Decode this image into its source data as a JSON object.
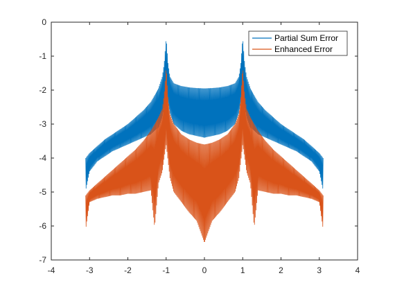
{
  "chart_data": {
    "type": "line",
    "title": "",
    "xlabel": "",
    "ylabel": "",
    "xlim": [
      -4,
      4
    ],
    "ylim": [
      -7,
      0
    ],
    "xticks": [
      -4,
      -3,
      -2,
      -1,
      0,
      1,
      2,
      3,
      4
    ],
    "yticks": [
      0,
      -1,
      -2,
      -3,
      -4,
      -5,
      -6,
      -7
    ],
    "xtick_labels": [
      "-4",
      "-3",
      "-2",
      "-1",
      "0",
      "1",
      "2",
      "3",
      "4"
    ],
    "ytick_labels": [
      "0",
      "-1",
      "-2",
      "-3",
      "-4",
      "-5",
      "-6",
      "-7"
    ],
    "grid": false,
    "legend_position": "top-right",
    "series": [
      {
        "name": "Partial Sum Error",
        "color": "#0072BD",
        "x": [
          -3.1,
          -3.0,
          -2.8,
          -2.6,
          -2.4,
          -2.2,
          -2.0,
          -1.8,
          -1.6,
          -1.4,
          -1.3,
          -1.2,
          -1.1,
          -1.05,
          -1.0,
          -0.95,
          -0.9,
          -0.8,
          -0.6,
          -0.4,
          -0.2,
          0.0,
          0.2,
          0.4,
          0.6,
          0.8,
          0.9,
          0.95,
          1.0,
          1.05,
          1.1,
          1.2,
          1.3,
          1.4,
          1.6,
          1.8,
          2.0,
          2.2,
          2.4,
          2.6,
          2.8,
          3.0,
          3.1
        ],
        "upper": [
          -4.0,
          -3.85,
          -3.65,
          -3.45,
          -3.3,
          -3.15,
          -3.0,
          -2.8,
          -2.6,
          -2.35,
          -2.15,
          -1.95,
          -1.6,
          -1.2,
          -0.45,
          -1.2,
          -1.6,
          -1.8,
          -1.88,
          -1.92,
          -1.94,
          -1.95,
          -1.94,
          -1.92,
          -1.88,
          -1.8,
          -1.6,
          -1.2,
          -0.45,
          -1.2,
          -1.6,
          -1.95,
          -2.15,
          -2.35,
          -2.6,
          -2.8,
          -3.0,
          -3.15,
          -3.3,
          -3.45,
          -3.65,
          -3.85,
          -4.0
        ],
        "lower": [
          -4.95,
          -4.4,
          -4.1,
          -3.95,
          -3.8,
          -3.7,
          -3.6,
          -3.5,
          -3.4,
          -3.3,
          -3.2,
          -3.1,
          -2.8,
          -2.5,
          -2.2,
          -2.4,
          -2.7,
          -3.0,
          -3.2,
          -3.3,
          -3.35,
          -3.4,
          -3.35,
          -3.3,
          -3.2,
          -3.0,
          -2.7,
          -2.4,
          -2.2,
          -2.5,
          -2.8,
          -3.1,
          -3.2,
          -3.3,
          -3.4,
          -3.5,
          -3.6,
          -3.7,
          -3.8,
          -3.95,
          -4.1,
          -4.4,
          -4.95
        ]
      },
      {
        "name": "Enhanced Error",
        "color": "#D95319",
        "x": [
          -3.1,
          -3.0,
          -2.8,
          -2.6,
          -2.4,
          -2.2,
          -2.0,
          -1.8,
          -1.6,
          -1.4,
          -1.3,
          -1.2,
          -1.1,
          -1.05,
          -1.0,
          -0.95,
          -0.9,
          -0.8,
          -0.6,
          -0.4,
          -0.2,
          0.0,
          0.2,
          0.4,
          0.6,
          0.8,
          0.9,
          0.95,
          1.0,
          1.05,
          1.1,
          1.2,
          1.3,
          1.4,
          1.6,
          1.8,
          2.0,
          2.2,
          2.4,
          2.6,
          2.8,
          3.0,
          3.1
        ],
        "upper": [
          -5.1,
          -4.95,
          -4.75,
          -4.55,
          -4.35,
          -4.15,
          -3.95,
          -3.75,
          -3.5,
          -3.2,
          -3.0,
          -2.8,
          -2.55,
          -2.1,
          -1.3,
          -2.2,
          -2.7,
          -3.0,
          -3.3,
          -3.45,
          -3.55,
          -3.6,
          -3.55,
          -3.45,
          -3.3,
          -3.0,
          -2.7,
          -2.2,
          -1.3,
          -2.1,
          -2.55,
          -2.8,
          -3.0,
          -3.2,
          -3.5,
          -3.75,
          -3.95,
          -4.15,
          -4.35,
          -4.55,
          -4.75,
          -4.95,
          -5.1
        ],
        "lower": [
          -6.1,
          -5.3,
          -5.2,
          -5.15,
          -5.1,
          -5.1,
          -5.05,
          -5.05,
          -5.0,
          -4.95,
          -6.05,
          -4.75,
          -4.4,
          -4.0,
          -3.6,
          -4.1,
          -4.6,
          -5.0,
          -5.3,
          -5.6,
          -5.85,
          -6.5,
          -5.85,
          -5.6,
          -5.3,
          -5.0,
          -4.6,
          -4.1,
          -3.6,
          -4.0,
          -4.4,
          -4.75,
          -6.05,
          -4.95,
          -5.0,
          -5.05,
          -5.05,
          -5.1,
          -5.1,
          -5.15,
          -5.2,
          -5.3,
          -6.1
        ]
      }
    ]
  }
}
